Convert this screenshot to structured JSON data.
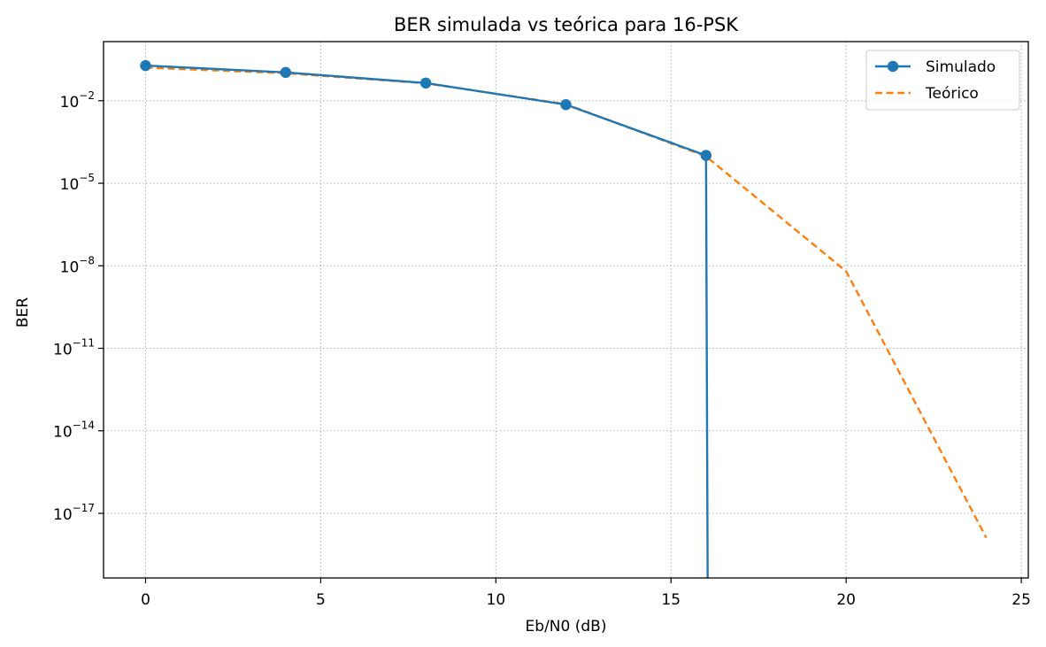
{
  "chart_data": {
    "type": "line",
    "title": "BER simulada vs teórica para 16-PSK",
    "xlabel": "Eb/N0 (dB)",
    "ylabel": "BER",
    "xscale": "linear",
    "yscale": "log",
    "xlim": [
      -1.2,
      25.2
    ],
    "ylim_exponent": [
      -19.35,
      0.15
    ],
    "grid": true,
    "grid_style": "dotted",
    "legend_position": "top-right",
    "x_ticks": [
      0,
      5,
      10,
      15,
      20,
      25
    ],
    "y_tick_base": "10",
    "y_tick_exponents": [
      "−2",
      "−5",
      "−8",
      "−11",
      "−14",
      "−17"
    ],
    "y_tick_exponent_values": [
      -2,
      -5,
      -8,
      -11,
      -14,
      -17
    ],
    "series": [
      {
        "name": "Simulado",
        "color": "#1f77b4",
        "style": "solid",
        "marker": "circle",
        "x": [
          0,
          4,
          8,
          12,
          16
        ],
        "y": [
          0.19,
          0.107,
          0.044,
          0.0072,
          0.000103
        ],
        "drop_to_zero_at": 16.05
      },
      {
        "name": "Teórico",
        "color": "#ff7f0e",
        "style": "dashed",
        "marker": "none",
        "x": [
          0,
          4,
          8,
          12,
          16,
          20,
          24
        ],
        "y": [
          0.16,
          0.1,
          0.043,
          0.0075,
          9.5e-05,
          6.3e-09,
          1.3e-18
        ]
      }
    ]
  }
}
